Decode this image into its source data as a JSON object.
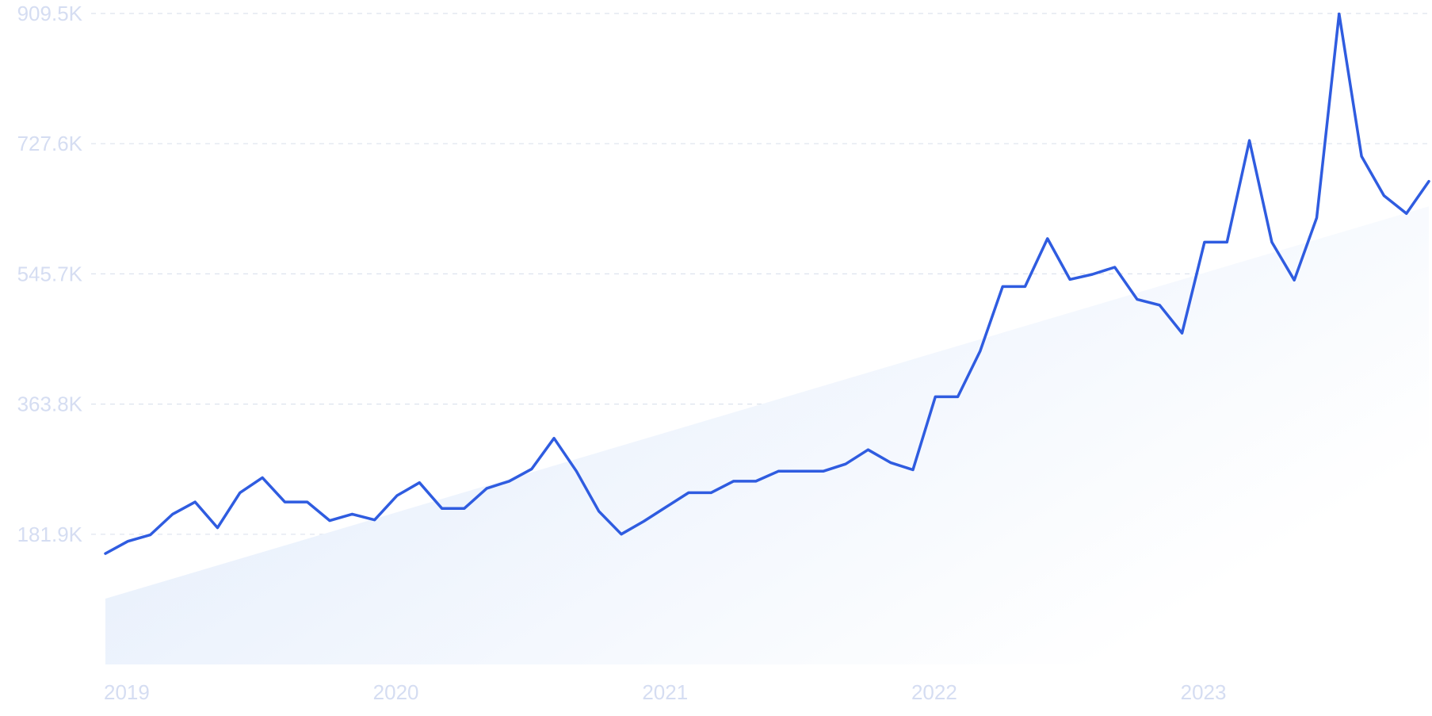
{
  "colors": {
    "line": "#2f5ce0",
    "trend_fill_start": "#dfeafb",
    "trend_fill_end": "#ffffff",
    "gridline": "#dde3ee",
    "tick_text": "#d5ddf2"
  },
  "chart_data": {
    "type": "line",
    "title": "",
    "xlabel": "",
    "ylabel": "",
    "grid": true,
    "legend": "none",
    "ylim": [
      0,
      909.5
    ],
    "y_unit": "K",
    "y_ticks": [
      "181.9K",
      "363.8K",
      "545.7K",
      "727.6K",
      "909.5K"
    ],
    "y_tick_values": [
      181.9,
      363.8,
      545.7,
      727.6,
      909.5
    ],
    "x_ticks": [
      "2019",
      "2020",
      "2021",
      "2022",
      "2023"
    ],
    "x_tick_values": [
      "2019-01",
      "2020-01",
      "2021-01",
      "2022-01",
      "2023-01"
    ],
    "series": [
      {
        "type": "line",
        "x": [
          "2019-01",
          "2019-02",
          "2019-03",
          "2019-04",
          "2019-05",
          "2019-06",
          "2019-07",
          "2019-08",
          "2019-09",
          "2019-10",
          "2019-11",
          "2019-12",
          "2020-01",
          "2020-02",
          "2020-03",
          "2020-04",
          "2020-05",
          "2020-06",
          "2020-07",
          "2020-08",
          "2020-09",
          "2020-10",
          "2020-11",
          "2020-12",
          "2021-01",
          "2021-02",
          "2021-03",
          "2021-04",
          "2021-05",
          "2021-06",
          "2021-07",
          "2021-08",
          "2021-09",
          "2021-10",
          "2021-11",
          "2021-12",
          "2022-01",
          "2022-02",
          "2022-03",
          "2022-04",
          "2022-05",
          "2022-06",
          "2022-07",
          "2022-08",
          "2022-09",
          "2022-10",
          "2022-11",
          "2022-12",
          "2023-01",
          "2023-02",
          "2023-03",
          "2023-04",
          "2023-05",
          "2023-06",
          "2023-07",
          "2023-08",
          "2023-09",
          "2023-10",
          "2023-11",
          "2023-12"
        ],
        "values": [
          155,
          172,
          181,
          210,
          227,
          191,
          240,
          261,
          227,
          227,
          201,
          210,
          202,
          236,
          254,
          218,
          218,
          246,
          256,
          273,
          316,
          270,
          214,
          182,
          200,
          220,
          240,
          240,
          256,
          256,
          270,
          270,
          270,
          280,
          300,
          282,
          272,
          374,
          374,
          438,
          528,
          528,
          595,
          538,
          545,
          555,
          510,
          502,
          463,
          590,
          590,
          732,
          590,
          537,
          624,
          909,
          710,
          655,
          630,
          675
        ]
      },
      {
        "type": "area",
        "x": [
          "2019-01",
          "2023-12"
        ],
        "values": [
          92,
          640
        ]
      }
    ]
  }
}
